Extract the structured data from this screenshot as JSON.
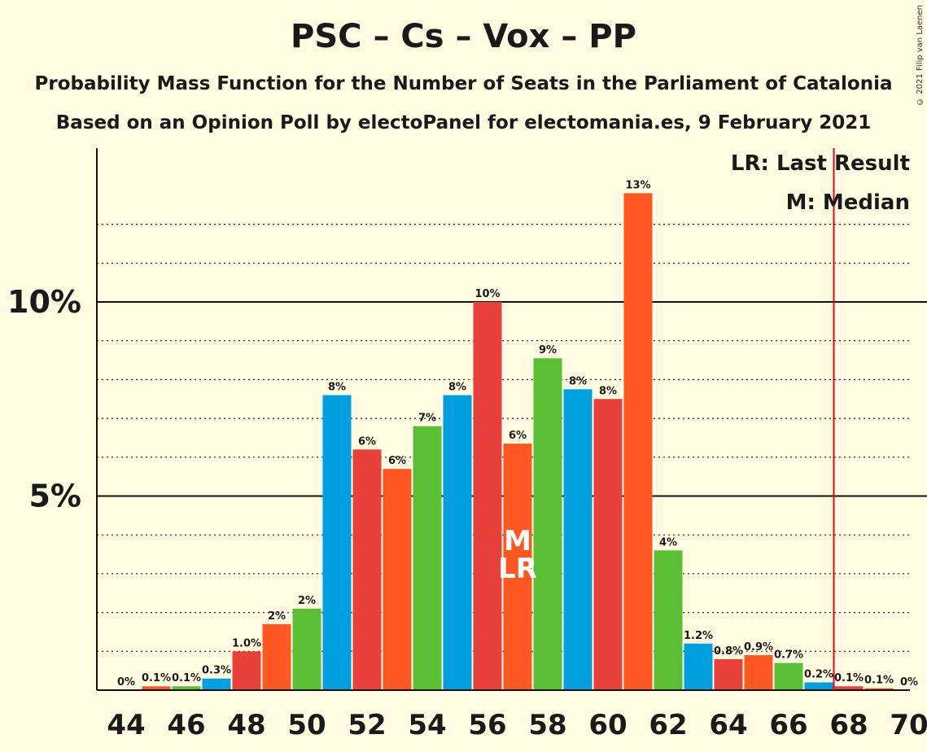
{
  "title": "PSC – Cs – Vox – PP",
  "subtitle1": "Probability Mass Function for the Number of Seats in the Parliament of Catalonia",
  "subtitle2": "Based on an Opinion Poll by electoPanel for electomania.es, 9 February 2021",
  "copyright": "© 2021 Filip van Laenen",
  "legend": {
    "last_result": "LR: Last Result",
    "median": "M: Median"
  },
  "markers": {
    "median_label": "M",
    "median_seat": 57,
    "last_result_label": "LR",
    "last_result_seat": 57,
    "majority_line_seat": 67.5
  },
  "colors": {
    "background": "#FFFCE2",
    "majority_line": "#E8001C",
    "party_cycle": [
      "#00A0E0",
      "#E8403A",
      "#FF5722",
      "#5BBF36"
    ]
  },
  "chart_data": {
    "type": "bar",
    "x": [
      44,
      45,
      46,
      47,
      48,
      49,
      50,
      51,
      52,
      53,
      54,
      55,
      56,
      57,
      58,
      59,
      60,
      61,
      62,
      63,
      64,
      65,
      66,
      67,
      68,
      69,
      70
    ],
    "values": [
      0,
      0.1,
      0.1,
      0.3,
      1.0,
      1.7,
      2.1,
      7.6,
      6.2,
      5.7,
      6.8,
      7.6,
      10.0,
      6.35,
      8.55,
      7.75,
      7.5,
      12.8,
      3.6,
      1.2,
      0.8,
      0.9,
      0.7,
      0.2,
      0.1,
      0.05,
      0
    ],
    "labels": [
      "0%",
      "0.1%",
      "0.1%",
      "0.3%",
      "1.0%",
      "2%",
      "2%",
      "8%",
      "6%",
      "6%",
      "7%",
      "8%",
      "10%",
      "6%",
      "9%",
      "8%",
      "8%",
      "13%",
      "4%",
      "1.2%",
      "0.8%",
      "0.9%",
      "0.7%",
      "0.2%",
      "0.1%",
      "0.1%",
      "0%"
    ],
    "x_ticks": [
      "44",
      "46",
      "48",
      "50",
      "52",
      "54",
      "56",
      "58",
      "60",
      "62",
      "64",
      "66",
      "68",
      "70"
    ],
    "y_ticks": [
      "5%",
      "10%"
    ],
    "y_tick_values": [
      5,
      10
    ],
    "ylim": [
      0,
      13.5
    ],
    "grid": "dotted every 1%, solid at 5% and 10%",
    "legend_position": "top-right"
  }
}
